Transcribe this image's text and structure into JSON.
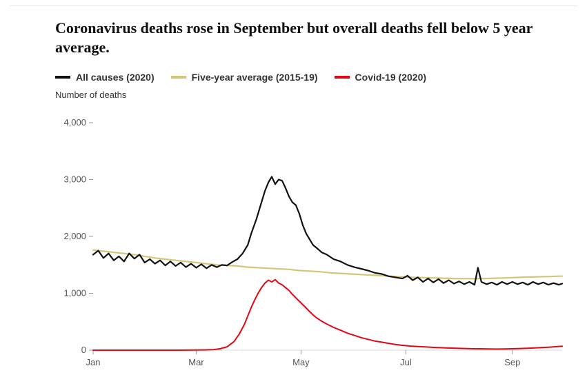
{
  "title": "Coronavirus deaths rose in September but overall deaths fell below 5 year average.",
  "y_axis_title": "Number of deaths",
  "chart": {
    "type": "line",
    "background_color": "#ffffff",
    "title_fontsize": 22,
    "title_fontweight": 700,
    "label_fontsize": 13,
    "legend_fontsize": 14,
    "axis_color": "#d9d9d9",
    "tick_color": "#999999",
    "text_color": "#555555",
    "ylim": [
      0,
      4000
    ],
    "ytick_step": 1000,
    "yticks": [
      0,
      1000,
      2000,
      3000,
      4000
    ],
    "ytick_labels": [
      "0",
      "1,000",
      "2,000",
      "3,000",
      "4,000"
    ],
    "x_domain_days": [
      0,
      273
    ],
    "xticks": [
      {
        "day": 0,
        "label": "Jan"
      },
      {
        "day": 60,
        "label": "Mar"
      },
      {
        "day": 121,
        "label": "May"
      },
      {
        "day": 182,
        "label": "Jul"
      },
      {
        "day": 244,
        "label": "Sep"
      }
    ],
    "line_width_main": 2.2,
    "line_width_avg": 2.2,
    "line_width_covid": 2.0,
    "series": [
      {
        "key": "all_causes",
        "label": "All causes (2020)",
        "color": "#111111",
        "data": [
          [
            0,
            1680
          ],
          [
            3,
            1750
          ],
          [
            6,
            1620
          ],
          [
            9,
            1700
          ],
          [
            12,
            1580
          ],
          [
            15,
            1650
          ],
          [
            18,
            1560
          ],
          [
            21,
            1700
          ],
          [
            24,
            1610
          ],
          [
            27,
            1680
          ],
          [
            30,
            1540
          ],
          [
            33,
            1600
          ],
          [
            36,
            1520
          ],
          [
            39,
            1580
          ],
          [
            42,
            1490
          ],
          [
            45,
            1560
          ],
          [
            48,
            1480
          ],
          [
            51,
            1540
          ],
          [
            54,
            1460
          ],
          [
            57,
            1520
          ],
          [
            60,
            1450
          ],
          [
            63,
            1510
          ],
          [
            66,
            1440
          ],
          [
            69,
            1500
          ],
          [
            72,
            1460
          ],
          [
            75,
            1500
          ],
          [
            78,
            1490
          ],
          [
            81,
            1550
          ],
          [
            84,
            1600
          ],
          [
            87,
            1700
          ],
          [
            90,
            1850
          ],
          [
            92,
            2050
          ],
          [
            95,
            2300
          ],
          [
            98,
            2600
          ],
          [
            100,
            2800
          ],
          [
            102,
            2950
          ],
          [
            104,
            3050
          ],
          [
            106,
            2920
          ],
          [
            108,
            3000
          ],
          [
            110,
            2980
          ],
          [
            112,
            2850
          ],
          [
            114,
            2700
          ],
          [
            116,
            2600
          ],
          [
            118,
            2550
          ],
          [
            120,
            2400
          ],
          [
            122,
            2200
          ],
          [
            124,
            2050
          ],
          [
            126,
            1950
          ],
          [
            128,
            1850
          ],
          [
            130,
            1800
          ],
          [
            133,
            1720
          ],
          [
            136,
            1680
          ],
          [
            140,
            1600
          ],
          [
            144,
            1560
          ],
          [
            148,
            1500
          ],
          [
            152,
            1460
          ],
          [
            156,
            1430
          ],
          [
            160,
            1400
          ],
          [
            164,
            1360
          ],
          [
            168,
            1340
          ],
          [
            172,
            1300
          ],
          [
            176,
            1280
          ],
          [
            180,
            1260
          ],
          [
            183,
            1310
          ],
          [
            186,
            1230
          ],
          [
            189,
            1280
          ],
          [
            192,
            1200
          ],
          [
            195,
            1260
          ],
          [
            198,
            1190
          ],
          [
            201,
            1250
          ],
          [
            204,
            1180
          ],
          [
            207,
            1230
          ],
          [
            210,
            1170
          ],
          [
            213,
            1210
          ],
          [
            216,
            1160
          ],
          [
            219,
            1200
          ],
          [
            222,
            1150
          ],
          [
            224,
            1450
          ],
          [
            226,
            1200
          ],
          [
            229,
            1160
          ],
          [
            232,
            1190
          ],
          [
            235,
            1150
          ],
          [
            238,
            1200
          ],
          [
            241,
            1160
          ],
          [
            244,
            1200
          ],
          [
            247,
            1160
          ],
          [
            250,
            1190
          ],
          [
            253,
            1150
          ],
          [
            256,
            1200
          ],
          [
            259,
            1160
          ],
          [
            262,
            1190
          ],
          [
            265,
            1150
          ],
          [
            268,
            1180
          ],
          [
            271,
            1150
          ],
          [
            273,
            1170
          ]
        ]
      },
      {
        "key": "five_year_avg",
        "label": "Five-year average (2015-19)",
        "color": "#d4c679",
        "data": [
          [
            0,
            1760
          ],
          [
            6,
            1740
          ],
          [
            12,
            1720
          ],
          [
            18,
            1700
          ],
          [
            24,
            1680
          ],
          [
            30,
            1650
          ],
          [
            36,
            1620
          ],
          [
            42,
            1600
          ],
          [
            48,
            1580
          ],
          [
            54,
            1560
          ],
          [
            60,
            1540
          ],
          [
            66,
            1520
          ],
          [
            72,
            1500
          ],
          [
            78,
            1490
          ],
          [
            84,
            1480
          ],
          [
            90,
            1460
          ],
          [
            96,
            1450
          ],
          [
            102,
            1440
          ],
          [
            108,
            1430
          ],
          [
            114,
            1420
          ],
          [
            120,
            1400
          ],
          [
            126,
            1390
          ],
          [
            132,
            1380
          ],
          [
            138,
            1360
          ],
          [
            144,
            1350
          ],
          [
            150,
            1340
          ],
          [
            156,
            1330
          ],
          [
            162,
            1320
          ],
          [
            168,
            1310
          ],
          [
            174,
            1300
          ],
          [
            180,
            1290
          ],
          [
            186,
            1280
          ],
          [
            192,
            1275
          ],
          [
            198,
            1270
          ],
          [
            204,
            1265
          ],
          [
            210,
            1260
          ],
          [
            216,
            1258
          ],
          [
            222,
            1256
          ],
          [
            228,
            1260
          ],
          [
            234,
            1265
          ],
          [
            240,
            1270
          ],
          [
            246,
            1278
          ],
          [
            252,
            1285
          ],
          [
            258,
            1290
          ],
          [
            264,
            1295
          ],
          [
            270,
            1300
          ],
          [
            273,
            1302
          ]
        ]
      },
      {
        "key": "covid",
        "label": "Covid-19 (2020)",
        "color": "#e30613",
        "data": [
          [
            0,
            0
          ],
          [
            30,
            0
          ],
          [
            50,
            0
          ],
          [
            60,
            2
          ],
          [
            65,
            5
          ],
          [
            70,
            10
          ],
          [
            74,
            25
          ],
          [
            78,
            60
          ],
          [
            82,
            150
          ],
          [
            85,
            280
          ],
          [
            88,
            450
          ],
          [
            90,
            600
          ],
          [
            92,
            750
          ],
          [
            94,
            880
          ],
          [
            96,
            1000
          ],
          [
            98,
            1100
          ],
          [
            100,
            1180
          ],
          [
            102,
            1230
          ],
          [
            104,
            1200
          ],
          [
            106,
            1240
          ],
          [
            108,
            1180
          ],
          [
            110,
            1150
          ],
          [
            112,
            1100
          ],
          [
            114,
            1050
          ],
          [
            116,
            980
          ],
          [
            118,
            920
          ],
          [
            120,
            860
          ],
          [
            122,
            800
          ],
          [
            124,
            740
          ],
          [
            126,
            680
          ],
          [
            128,
            620
          ],
          [
            130,
            570
          ],
          [
            133,
            510
          ],
          [
            136,
            460
          ],
          [
            140,
            400
          ],
          [
            144,
            350
          ],
          [
            148,
            300
          ],
          [
            152,
            260
          ],
          [
            156,
            220
          ],
          [
            160,
            190
          ],
          [
            164,
            160
          ],
          [
            168,
            140
          ],
          [
            172,
            120
          ],
          [
            176,
            100
          ],
          [
            180,
            85
          ],
          [
            185,
            72
          ],
          [
            190,
            62
          ],
          [
            195,
            54
          ],
          [
            200,
            46
          ],
          [
            205,
            40
          ],
          [
            210,
            35
          ],
          [
            215,
            30
          ],
          [
            220,
            26
          ],
          [
            225,
            24
          ],
          [
            230,
            22
          ],
          [
            235,
            20
          ],
          [
            240,
            22
          ],
          [
            245,
            26
          ],
          [
            250,
            30
          ],
          [
            255,
            36
          ],
          [
            260,
            44
          ],
          [
            265,
            52
          ],
          [
            270,
            62
          ],
          [
            273,
            70
          ]
        ]
      }
    ]
  }
}
